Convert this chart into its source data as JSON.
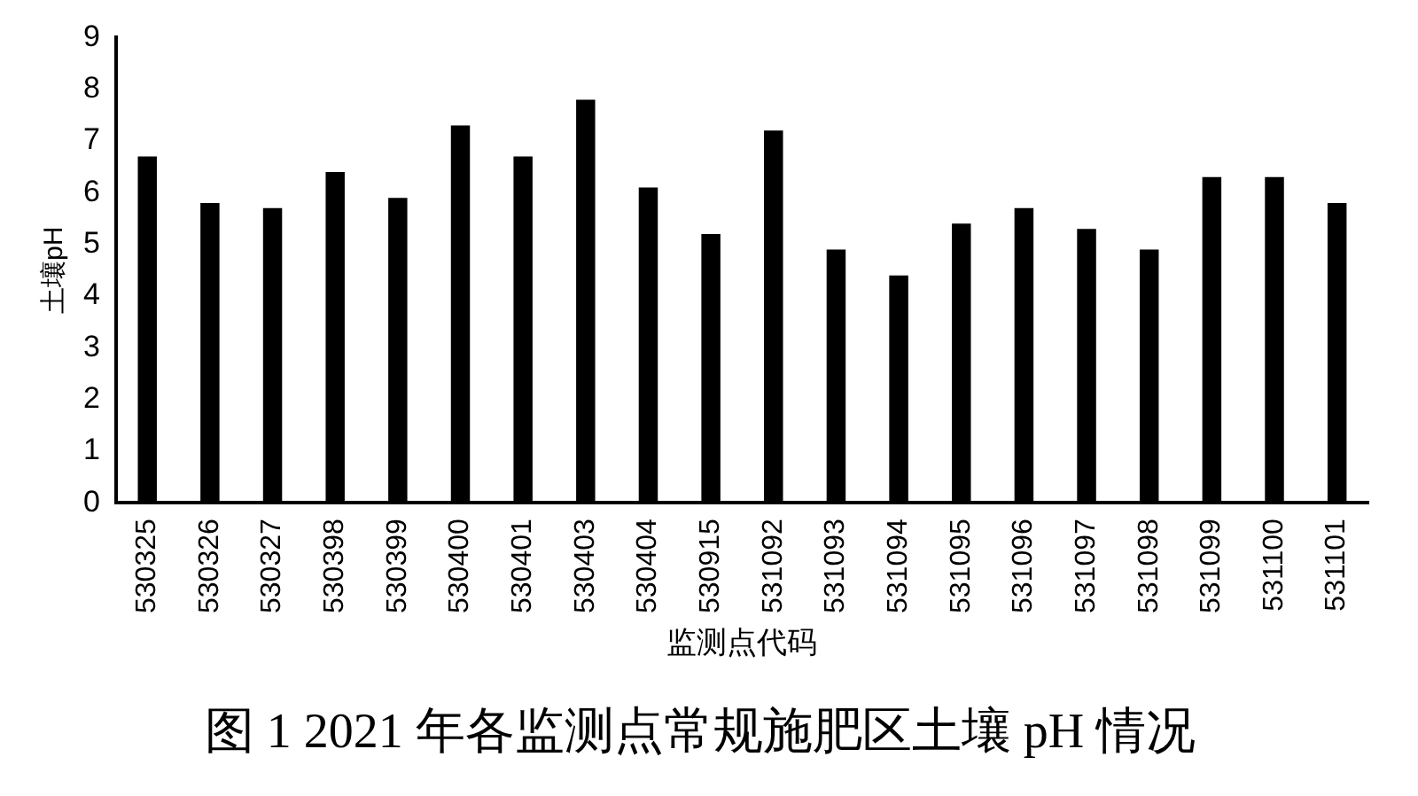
{
  "chart_data": {
    "type": "bar",
    "title": "图 1 2021 年各监测点常规施肥区土壤 pH 情况",
    "xlabel": "监测点代码",
    "ylabel": "土壤pH",
    "categories": [
      "530325",
      "530326",
      "530327",
      "530398",
      "530399",
      "530400",
      "530401",
      "530403",
      "530404",
      "530915",
      "531092",
      "531093",
      "531094",
      "531095",
      "531096",
      "531097",
      "531098",
      "531099",
      "531100",
      "531101"
    ],
    "values": [
      6.7,
      5.8,
      5.7,
      6.4,
      5.9,
      7.3,
      6.7,
      7.8,
      6.1,
      5.2,
      7.2,
      4.9,
      4.4,
      5.4,
      5.7,
      5.3,
      4.9,
      6.3,
      6.3,
      5.8
    ],
    "color": "#000000",
    "ylim": [
      0,
      9
    ],
    "yticks": [
      0,
      1,
      2,
      3,
      4,
      5,
      6,
      7,
      8,
      9
    ],
    "grid": false,
    "legend": false
  }
}
